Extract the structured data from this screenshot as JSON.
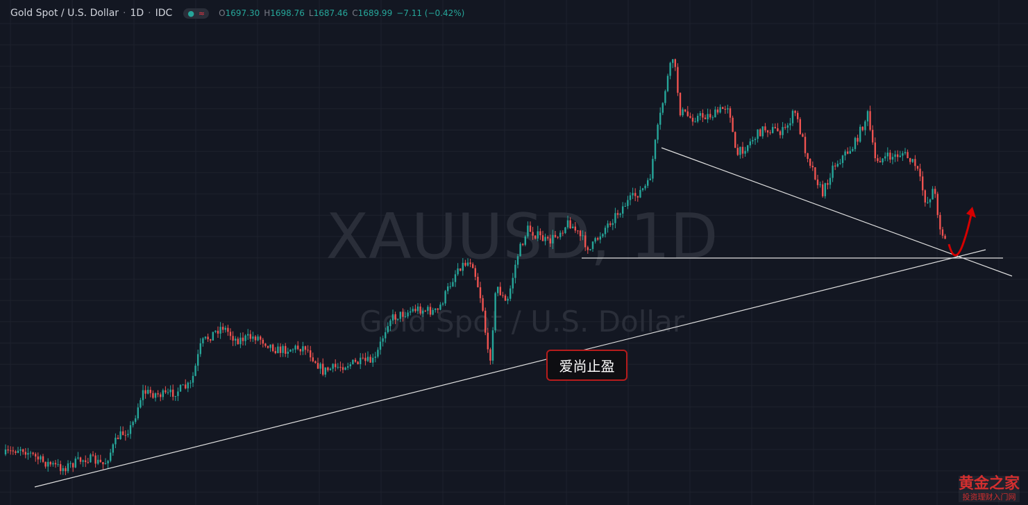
{
  "header": {
    "symbol": "Gold Spot / U.S. Dollar",
    "interval": "1D",
    "exchange": "IDC",
    "ohlc": [
      {
        "label": "O",
        "value": "1697.30"
      },
      {
        "label": "H",
        "value": "1698.76"
      },
      {
        "label": "L",
        "value": "1687.46"
      },
      {
        "label": "C",
        "value": "1689.99"
      }
    ],
    "change": "−7.11 (−0.42%)"
  },
  "watermark": {
    "line1": "XAUUSD, 1D",
    "line2": "Gold Spot / U.S. Dollar"
  },
  "annotation": "爱尚止盈",
  "logo": {
    "title": "黄金之家",
    "subtitle": "投资理财入门网"
  }
}
